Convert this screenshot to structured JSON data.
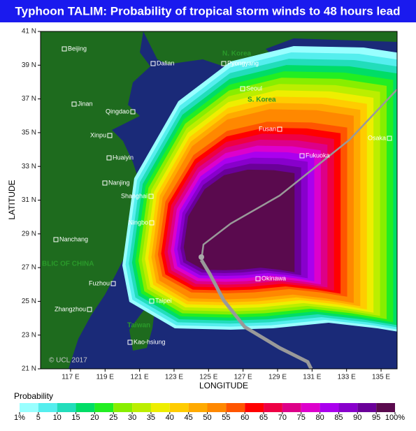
{
  "title": "Typhoon TALIM: Probability of tropical storm winds to 48 hours lead",
  "map": {
    "x_label": "LONGITUDE",
    "y_label": "LATITUDE",
    "xlim": [
      115.26,
      135.93
    ],
    "ylim": [
      21,
      41
    ],
    "xticks": [
      {
        "value": 117,
        "label": "117 E"
      },
      {
        "value": 119,
        "label": "119 E"
      },
      {
        "value": 121,
        "label": "121 E"
      },
      {
        "value": 123,
        "label": "123 E"
      },
      {
        "value": 125,
        "label": "125 E"
      },
      {
        "value": 127,
        "label": "127 E"
      },
      {
        "value": 129,
        "label": "129 E"
      },
      {
        "value": 131,
        "label": "131 E"
      },
      {
        "value": 133,
        "label": "133 E"
      },
      {
        "value": 135,
        "label": "135 E"
      }
    ],
    "yticks": [
      {
        "value": 41,
        "label": "41 N"
      },
      {
        "value": 39,
        "label": "39 N"
      },
      {
        "value": 37,
        "label": "37 N"
      },
      {
        "value": 35,
        "label": "35 N"
      },
      {
        "value": 33,
        "label": "33 N"
      },
      {
        "value": 31,
        "label": "31 N"
      },
      {
        "value": 29,
        "label": "29 N"
      },
      {
        "value": 27,
        "label": "27 N"
      },
      {
        "value": 25,
        "label": "25 N"
      },
      {
        "value": 23,
        "label": "23 N"
      },
      {
        "value": 21,
        "label": "21 N"
      }
    ],
    "cities": [
      "Beijing",
      "Dalian",
      "Pyongyang",
      "Seoul",
      "Jinan",
      "Qingdao",
      "Xinpu",
      "Fusan",
      "Fukuoka",
      "Osaka",
      "Huaiyin",
      "Nanjing",
      "Shanghai",
      "Ningbo",
      "Nanchang",
      "Okinawa",
      "Fuzhou",
      "Taipei",
      "Zhangzhou",
      "Kao-hsiung"
    ],
    "countries": [
      "N. Korea",
      "S. Korea",
      "BLIC OF CHINA",
      "Taiwan"
    ],
    "credit": "© UCL 2017"
  },
  "legend": {
    "title": "Probability",
    "ticks": [
      {
        "value": 1,
        "label": "1%"
      },
      5,
      10,
      15,
      20,
      25,
      30,
      35,
      40,
      45,
      50,
      55,
      60,
      65,
      70,
      75,
      80,
      85,
      90,
      95,
      {
        "value": 100,
        "label": "100%"
      }
    ],
    "colors": [
      "#99ffff",
      "#55eeee",
      "#22ddbb",
      "#00dd66",
      "#22ee22",
      "#88ee00",
      "#bbee00",
      "#eeee00",
      "#ffcc00",
      "#ffaa00",
      "#ff8800",
      "#ff5500",
      "#ff0000",
      "#ee0044",
      "#dd0088",
      "#dd00cc",
      "#aa00ee",
      "#8800cc",
      "#6a0099",
      "#5a0a4e"
    ]
  }
}
